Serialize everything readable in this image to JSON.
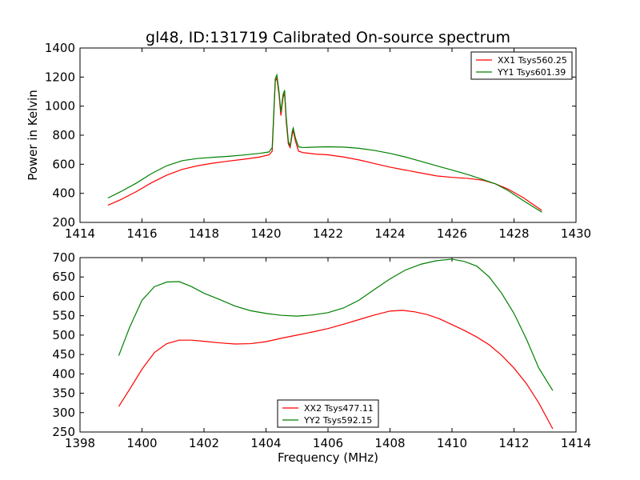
{
  "chart_data": [
    {
      "type": "line",
      "title": "gl48, ID:131719 Calibrated On-source spectrum",
      "xlabel": "",
      "ylabel": "Power in Kelvin",
      "xlim": [
        1414,
        1430
      ],
      "ylim": [
        200,
        1400
      ],
      "xticks": [
        "1414",
        "1416",
        "1418",
        "1420",
        "1422",
        "1424",
        "1426",
        "1428",
        "1430"
      ],
      "yticks": [
        "200",
        "400",
        "600",
        "800",
        "1000",
        "1200",
        "1400"
      ],
      "legend_position": "top-right",
      "series": [
        {
          "name": "XX1 Tsys560.25",
          "color": "#ff0000",
          "points": [
            [
              1414.9,
              318
            ],
            [
              1415.3,
              355
            ],
            [
              1415.8,
              410
            ],
            [
              1416.3,
              472
            ],
            [
              1416.8,
              525
            ],
            [
              1417.3,
              565
            ],
            [
              1417.8,
              590
            ],
            [
              1418.3,
              608
            ],
            [
              1418.8,
              622
            ],
            [
              1419.3,
              635
            ],
            [
              1419.8,
              650
            ],
            [
              1420.1,
              665
            ],
            [
              1420.2,
              690
            ],
            [
              1420.3,
              1170
            ],
            [
              1420.35,
              1195
            ],
            [
              1420.42,
              1080
            ],
            [
              1420.48,
              935
            ],
            [
              1420.55,
              1060
            ],
            [
              1420.6,
              1090
            ],
            [
              1420.65,
              900
            ],
            [
              1420.72,
              740
            ],
            [
              1420.78,
              715
            ],
            [
              1420.85,
              810
            ],
            [
              1420.88,
              828
            ],
            [
              1420.95,
              760
            ],
            [
              1421.05,
              690
            ],
            [
              1421.2,
              680
            ],
            [
              1421.6,
              670
            ],
            [
              1422.0,
              665
            ],
            [
              1422.5,
              650
            ],
            [
              1423.0,
              630
            ],
            [
              1423.5,
              605
            ],
            [
              1424.0,
              580
            ],
            [
              1424.5,
              560
            ],
            [
              1425.0,
              540
            ],
            [
              1425.5,
              520
            ],
            [
              1426.0,
              510
            ],
            [
              1426.5,
              503
            ],
            [
              1427.0,
              490
            ],
            [
              1427.4,
              465
            ],
            [
              1427.8,
              430
            ],
            [
              1428.3,
              370
            ],
            [
              1428.9,
              282
            ]
          ]
        },
        {
          "name": "YY1 Tsys601.39",
          "color": "#008000",
          "points": [
            [
              1414.9,
              368
            ],
            [
              1415.3,
              410
            ],
            [
              1415.8,
              468
            ],
            [
              1416.3,
              535
            ],
            [
              1416.8,
              590
            ],
            [
              1417.3,
              625
            ],
            [
              1417.8,
              640
            ],
            [
              1418.3,
              648
            ],
            [
              1418.8,
              655
            ],
            [
              1419.3,
              664
            ],
            [
              1419.8,
              675
            ],
            [
              1420.1,
              685
            ],
            [
              1420.2,
              715
            ],
            [
              1420.3,
              1190
            ],
            [
              1420.35,
              1215
            ],
            [
              1420.42,
              1100
            ],
            [
              1420.48,
              960
            ],
            [
              1420.55,
              1080
            ],
            [
              1420.6,
              1110
            ],
            [
              1420.65,
              930
            ],
            [
              1420.72,
              760
            ],
            [
              1420.78,
              725
            ],
            [
              1420.85,
              830
            ],
            [
              1420.88,
              850
            ],
            [
              1420.95,
              780
            ],
            [
              1421.05,
              720
            ],
            [
              1421.2,
              715
            ],
            [
              1421.6,
              718
            ],
            [
              1422.0,
              720
            ],
            [
              1422.5,
              718
            ],
            [
              1423.0,
              710
            ],
            [
              1423.5,
              695
            ],
            [
              1424.0,
              675
            ],
            [
              1424.5,
              650
            ],
            [
              1425.0,
              620
            ],
            [
              1425.5,
              590
            ],
            [
              1426.0,
              560
            ],
            [
              1426.5,
              530
            ],
            [
              1427.0,
              495
            ],
            [
              1427.4,
              465
            ],
            [
              1427.8,
              420
            ],
            [
              1428.3,
              350
            ],
            [
              1428.9,
              270
            ]
          ]
        }
      ]
    },
    {
      "type": "line",
      "title": "",
      "xlabel": "Frequency (MHz)",
      "ylabel": "",
      "xlim": [
        1398,
        1414
      ],
      "ylim": [
        250,
        700
      ],
      "xticks": [
        "1398",
        "1400",
        "1402",
        "1404",
        "1406",
        "1408",
        "1410",
        "1412",
        "1414"
      ],
      "yticks": [
        "250",
        "300",
        "350",
        "400",
        "450",
        "500",
        "550",
        "600",
        "650",
        "700"
      ],
      "legend_position": "bottom-center",
      "series": [
        {
          "name": "XX2 Tsys477.11",
          "color": "#ff0000",
          "points": [
            [
              1399.25,
              316
            ],
            [
              1399.6,
              360
            ],
            [
              1400.0,
              412
            ],
            [
              1400.4,
              455
            ],
            [
              1400.8,
              478
            ],
            [
              1401.2,
              487
            ],
            [
              1401.6,
              487
            ],
            [
              1402.0,
              484
            ],
            [
              1402.5,
              480
            ],
            [
              1403.0,
              477
            ],
            [
              1403.5,
              478
            ],
            [
              1404.0,
              483
            ],
            [
              1404.5,
              492
            ],
            [
              1405.0,
              500
            ],
            [
              1405.5,
              508
            ],
            [
              1406.0,
              517
            ],
            [
              1406.5,
              528
            ],
            [
              1407.0,
              540
            ],
            [
              1407.5,
              552
            ],
            [
              1408.0,
              562
            ],
            [
              1408.4,
              564
            ],
            [
              1408.8,
              560
            ],
            [
              1409.2,
              553
            ],
            [
              1409.6,
              542
            ],
            [
              1410.0,
              527
            ],
            [
              1410.4,
              512
            ],
            [
              1410.8,
              495
            ],
            [
              1411.2,
              475
            ],
            [
              1411.6,
              448
            ],
            [
              1412.0,
              415
            ],
            [
              1412.4,
              375
            ],
            [
              1412.8,
              325
            ],
            [
              1413.25,
              258
            ]
          ]
        },
        {
          "name": "YY2 Tsys592.15",
          "color": "#008000",
          "points": [
            [
              1399.25,
              447
            ],
            [
              1399.6,
              520
            ],
            [
              1400.0,
              590
            ],
            [
              1400.4,
              625
            ],
            [
              1400.8,
              637
            ],
            [
              1401.2,
              638
            ],
            [
              1401.6,
              625
            ],
            [
              1402.0,
              608
            ],
            [
              1402.5,
              592
            ],
            [
              1403.0,
              575
            ],
            [
              1403.5,
              563
            ],
            [
              1404.0,
              556
            ],
            [
              1404.5,
              551
            ],
            [
              1405.0,
              549
            ],
            [
              1405.5,
              552
            ],
            [
              1406.0,
              558
            ],
            [
              1406.5,
              570
            ],
            [
              1407.0,
              590
            ],
            [
              1407.5,
              618
            ],
            [
              1408.0,
              645
            ],
            [
              1408.5,
              668
            ],
            [
              1409.0,
              683
            ],
            [
              1409.5,
              692
            ],
            [
              1410.0,
              696
            ],
            [
              1410.4,
              690
            ],
            [
              1410.8,
              678
            ],
            [
              1411.2,
              650
            ],
            [
              1411.6,
              608
            ],
            [
              1412.0,
              556
            ],
            [
              1412.4,
              490
            ],
            [
              1412.8,
              415
            ],
            [
              1413.25,
              357
            ]
          ]
        }
      ]
    }
  ]
}
